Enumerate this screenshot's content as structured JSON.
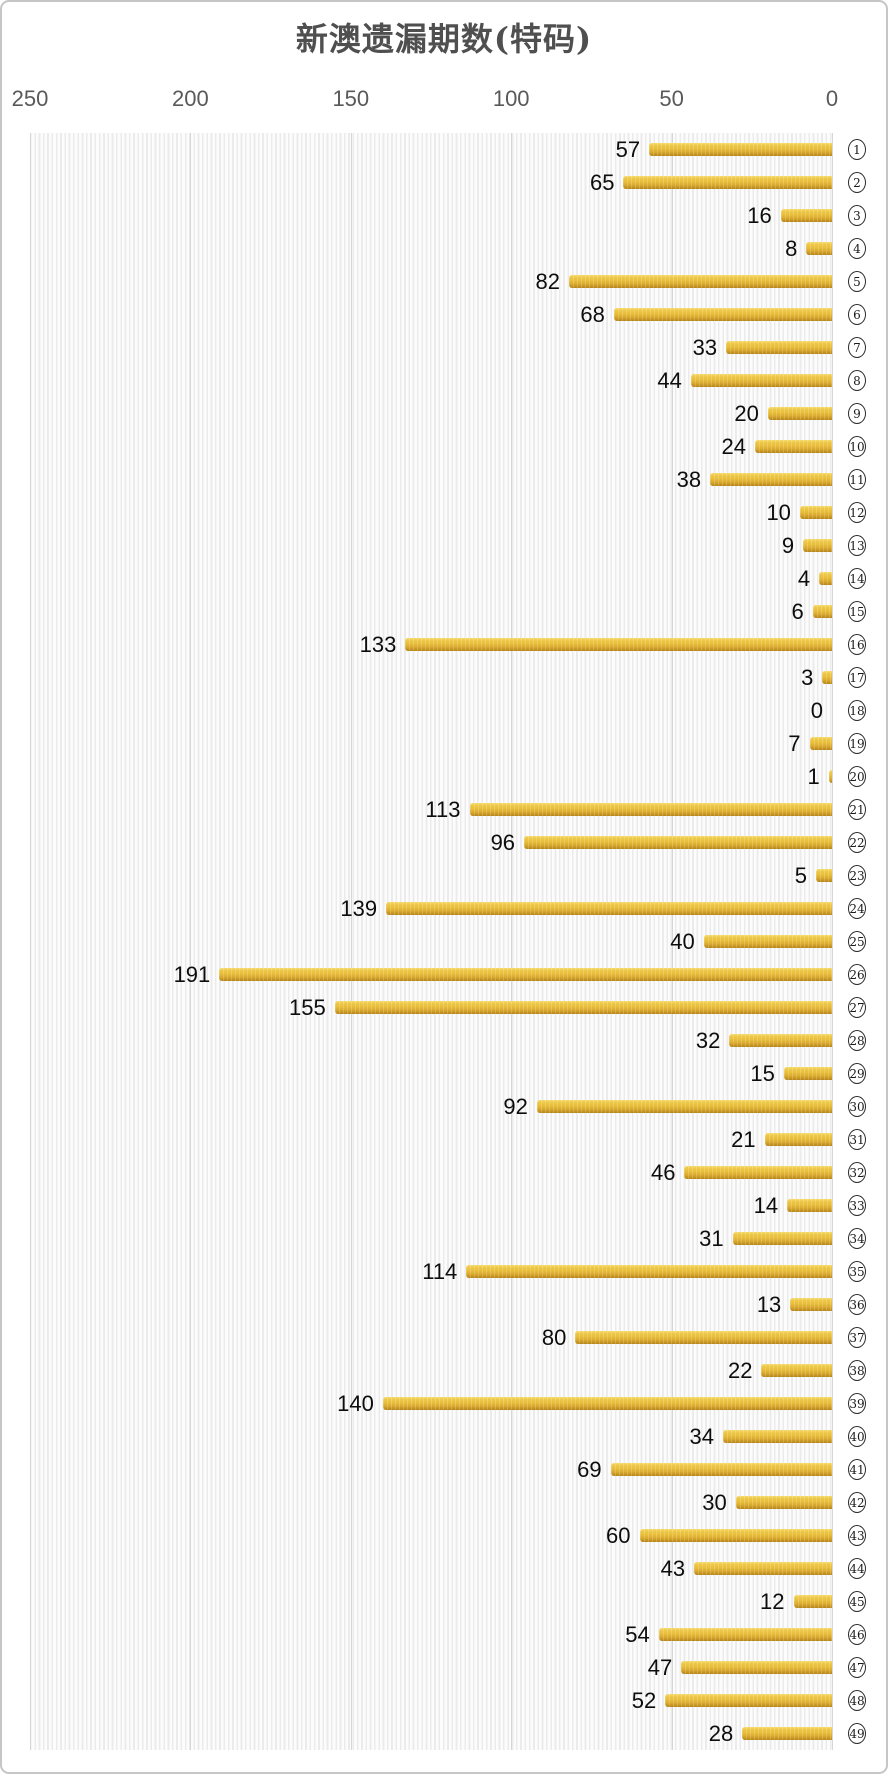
{
  "title": "新澳遗漏期数(特码)",
  "colors": {
    "title_text": "#4f4f4f",
    "axis_label_text": "#595959",
    "value_label_text": "#0d0d0d",
    "gridline": "#d6d6d6",
    "plot_stripe": "#ebebeb",
    "bar_gold_light": "#f6dc6e",
    "bar_gold_mid": "#e8bd3a",
    "bar_gold_dark": "#b3831a",
    "chart_border": "#c6c6c6",
    "background": "#ffffff"
  },
  "chart_data": {
    "type": "bar",
    "orientation": "horizontal",
    "title": "新澳遗漏期数(特码)",
    "categories": [
      1,
      2,
      3,
      4,
      5,
      6,
      7,
      8,
      9,
      10,
      11,
      12,
      13,
      14,
      15,
      16,
      17,
      18,
      19,
      20,
      21,
      22,
      23,
      24,
      25,
      26,
      27,
      28,
      29,
      30,
      31,
      32,
      33,
      34,
      35,
      36,
      37,
      38,
      39,
      40,
      41,
      42,
      43,
      44,
      45,
      46,
      47,
      48,
      49
    ],
    "category_style": "circled-number",
    "values": [
      57,
      65,
      16,
      8,
      82,
      68,
      33,
      44,
      20,
      24,
      38,
      10,
      9,
      4,
      6,
      133,
      3,
      0,
      7,
      1,
      113,
      96,
      5,
      139,
      40,
      191,
      155,
      32,
      15,
      92,
      21,
      46,
      14,
      31,
      114,
      13,
      80,
      22,
      140,
      34,
      69,
      30,
      60,
      43,
      12,
      54,
      47,
      52,
      28
    ],
    "value_labels_shown": true,
    "x_ticks": [
      250,
      200,
      150,
      100,
      50,
      0
    ],
    "xlim": [
      0,
      250
    ],
    "x_axis_reversed": true,
    "axis_position": "top",
    "grid": "vertical",
    "legend": "none"
  }
}
